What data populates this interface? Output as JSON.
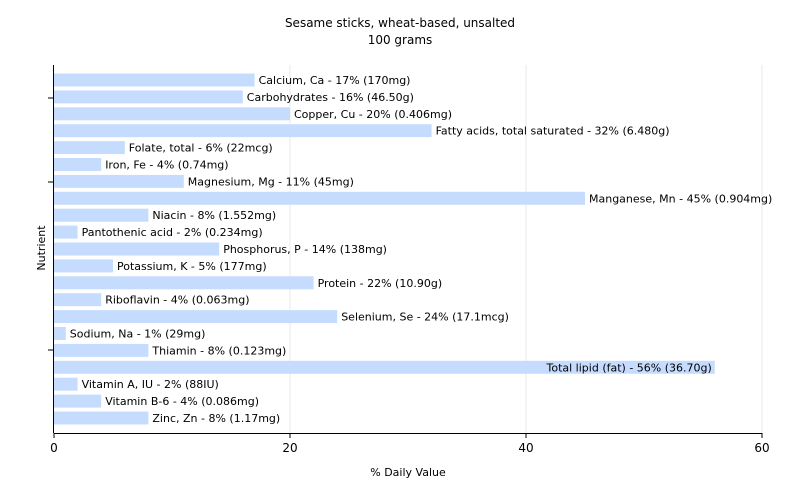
{
  "chart_data": {
    "type": "bar",
    "orientation": "horizontal",
    "title": "Sesame sticks, wheat-based, unsalted",
    "subtitle": "100 grams",
    "xlabel": "% Daily Value",
    "ylabel": "Nutrient",
    "xlim": [
      0,
      60
    ],
    "xticks": [
      0,
      20,
      40,
      60
    ],
    "grid": true,
    "bar_color": "#c6dcff",
    "grid_color": "#e8e8e8",
    "categories": [
      "Calcium, Ca",
      "Carbohydrates",
      "Copper, Cu",
      "Fatty acids, total saturated",
      "Folate, total",
      "Iron, Fe",
      "Magnesium, Mg",
      "Manganese, Mn",
      "Niacin",
      "Pantothenic acid",
      "Phosphorus, P",
      "Potassium, K",
      "Protein",
      "Riboflavin",
      "Selenium, Se",
      "Sodium, Na",
      "Thiamin",
      "Total lipid (fat)",
      "Vitamin A, IU",
      "Vitamin B-6",
      "Zinc, Zn"
    ],
    "values": [
      17,
      16,
      20,
      32,
      6,
      4,
      11,
      45,
      8,
      2,
      14,
      5,
      22,
      4,
      24,
      1,
      8,
      56,
      2,
      4,
      8
    ],
    "labels": [
      "Calcium, Ca - 17% (170mg)",
      "Carbohydrates - 16% (46.50g)",
      "Copper, Cu - 20% (0.406mg)",
      "Fatty acids, total saturated - 32% (6.480g)",
      "Folate, total - 6% (22mcg)",
      "Iron, Fe - 4% (0.74mg)",
      "Magnesium, Mg - 11% (45mg)",
      "Manganese, Mn - 45% (0.904mg)",
      "Niacin - 8% (1.552mg)",
      "Pantothenic acid - 2% (0.234mg)",
      "Phosphorus, P - 14% (138mg)",
      "Potassium, K - 5% (177mg)",
      "Protein - 22% (10.90g)",
      "Riboflavin - 4% (0.063mg)",
      "Selenium, Se - 24% (17.1mcg)",
      "Sodium, Na - 1% (29mg)",
      "Thiamin - 8% (0.123mg)",
      "Total lipid (fat) - 56% (36.70g)",
      "Vitamin A, IU - 2% (88IU)",
      "Vitamin B-6 - 4% (0.086mg)",
      "Zinc, Zn - 8% (1.17mg)"
    ]
  }
}
